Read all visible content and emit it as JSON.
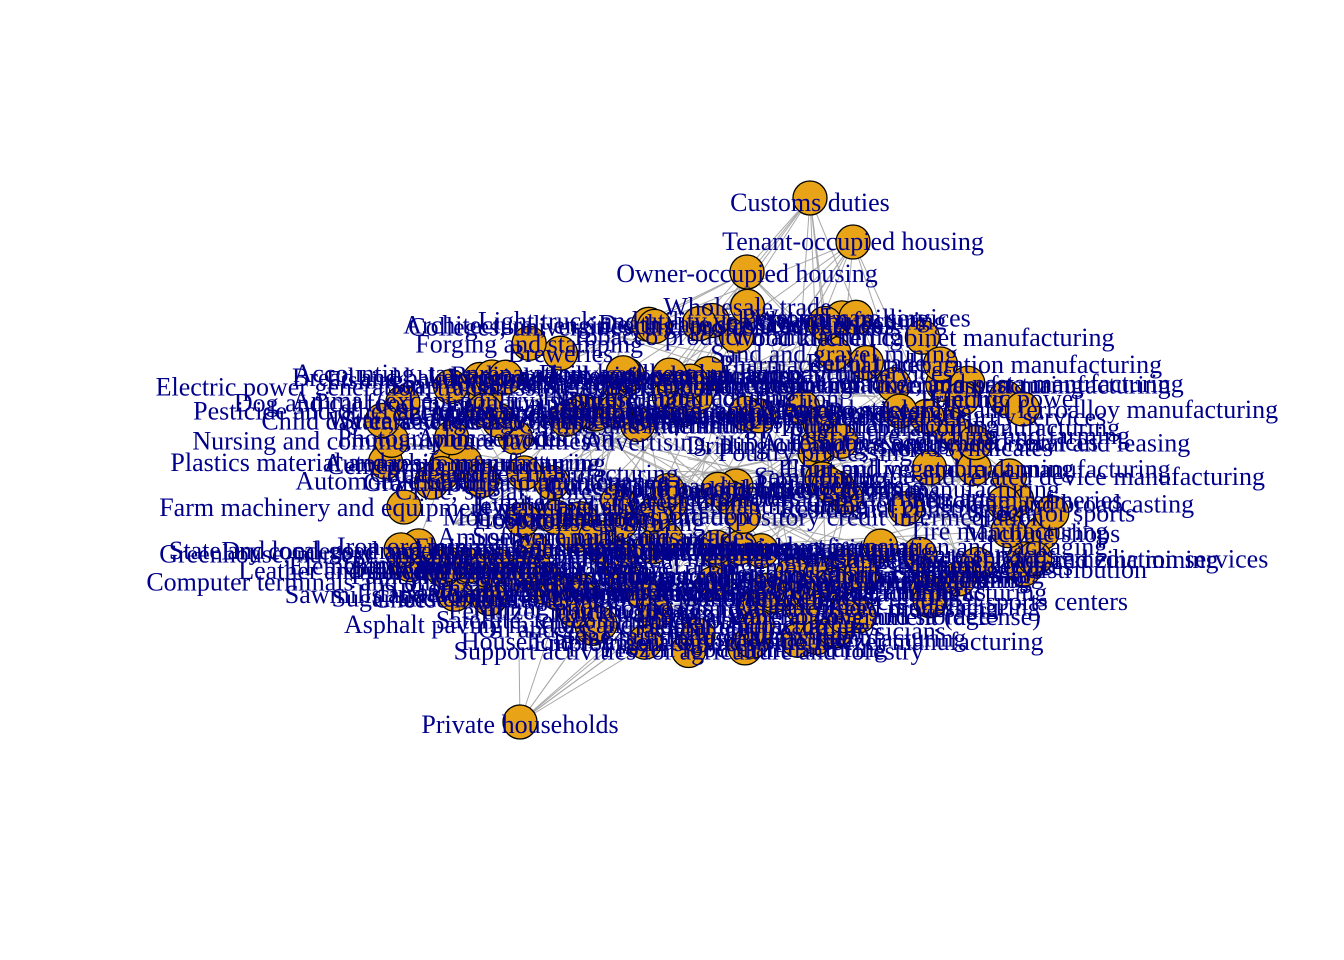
{
  "diagram": {
    "type": "network-graph",
    "colors": {
      "node_fill": "#e8a317",
      "node_stroke": "#000000",
      "edge": "#a8a8a8",
      "label": "#00008b",
      "background": "#ffffff"
    },
    "outlier_nodes": [
      {
        "id": "customs",
        "label": "Customs duties"
      },
      {
        "id": "tenant",
        "label": "Tenant-occupied housing"
      },
      {
        "id": "owner",
        "label": "Owner-occupied housing"
      },
      {
        "id": "households",
        "label": "Private households"
      }
    ],
    "cluster_labels": [
      "Beef cattle ranching and farming",
      "Animal production",
      "Animal (except poultry) slaughtering",
      "Support activities for agriculture and forestry",
      "Dry condensed and evaporated dairy product manufacturing",
      "Junior colleges",
      "Residential mental health",
      "Community food services",
      "State and local",
      "Promoters of performing arts",
      "Grantmaking",
      "Cutting and machining",
      "News syndicates",
      "Electric power",
      "Wood kitchen cabinet manufacturing",
      "Satellite, telecommunications",
      "Medical",
      "Motion picture",
      "Cotton farming",
      "Poultry processing",
      "Dairy cattle and milk production",
      "Ready-mix concrete manufacturing",
      "Grain farming",
      "Oilseed farming",
      "Fruit farming",
      "Greenhouse, nursery, and floriculture production",
      "Fishing, hunting and trapping",
      "Logging",
      "Oil and gas extraction",
      "Coal mining",
      "Iron ore mining",
      "Copper, nickel, lead, and zinc mining",
      "Stone mining and quarrying",
      "Sand and gravel mining",
      "Drilling oil and gas wells",
      "Electric power generation, transmission, and distribution",
      "Natural gas distribution",
      "Water, sewage and other systems",
      "Residential construction",
      "Nonresidential construction",
      "Dog and cat food manufacturing",
      "Flour milling and malt manufacturing",
      "Wet corn milling",
      "Soybean and other oilseed processing",
      "Sugar and confectionery product manufacturing",
      "Frozen food manufacturing",
      "Fruit and vegetable canning",
      "Fluid milk and butter manufacturing",
      "Cheese manufacturing",
      "Ice cream and frozen dessert manufacturing",
      "Meat processed from carcasses",
      "Seafood product preparation and packaging",
      "Bread and bakery product manufacturing",
      "Cookie, cracker, and pasta manufacturing",
      "Tortilla manufacturing",
      "Snack food manufacturing",
      "Coffee and tea manufacturing",
      "Soft drink and ice manufacturing",
      "Breweries",
      "Wineries",
      "Distilleries",
      "Tobacco product manufacturing",
      "Textile mills",
      "Apparel manufacturing",
      "Leather and allied product manufacturing",
      "Sawmills and wood preservation",
      "Pulp mills",
      "Paper mills",
      "Paperboard container manufacturing",
      "Printing",
      "Petroleum refineries",
      "Asphalt paving mixture and block manufacturing",
      "Petrochemical manufacturing",
      "Industrial gas manufacturing",
      "Synthetic dye and pigment manufacturing",
      "Plastics material and resin manufacturing",
      "Fertilizer manufacturing",
      "Pesticide and other agricultural chemical manufacturing",
      "Pharmaceutical preparation manufacturing",
      "Paint and coating manufacturing",
      "Soap and cleaning compound manufacturing",
      "Toilet preparation manufacturing",
      "Tire manufacturing",
      "Glass and glass product manufacturing",
      "Cement manufacturing",
      "Iron and steel mills and ferroalloy manufacturing",
      "Aluminum product manufacturing",
      "Forging and stamping",
      "Cutlery and handtool manufacturing",
      "Machine shops",
      "Farm machinery and equipment manufacturing",
      "Construction machinery manufacturing",
      "Mining and oil and gas field machinery manufacturing",
      "Semiconductor and related device manufacturing",
      "Computer terminals and other computer peripheral equipment manufacturing",
      "Household refrigerator and home freezer manufacturing",
      "Automobile manufacturing",
      "Light truck and utility vehicle manufacturing",
      "Aircraft manufacturing",
      "Railroad rolling stock manufacturing",
      "Ship building and repairing",
      "Furniture manufacturing",
      "Jewelry and silverware manufacturing",
      "Sporting and athletic goods manufacturing",
      "Wholesale trade",
      "Retail trade",
      "Air transportation",
      "Rail transportation",
      "Truck transportation",
      "Pipeline transportation",
      "Warehousing and storage",
      "Newspaper publishers",
      "Software publishers",
      "Radio and television broadcasting",
      "Cable and other subscription programming",
      "Internet publishing and broadcasting",
      "Data processing, hosting, and related services",
      "Monetary authorities and depository credit intermediation",
      "Securities and commodity contracts",
      "Insurance carriers",
      "Real estate",
      "Automotive equipment rental and leasing",
      "Legal services",
      "Accounting, tax preparation, bookkeeping, and payroll services",
      "Architectural, engineering, and related services",
      "Computer systems design services",
      "Management consulting services",
      "Scientific research and development services",
      "Advertising, public relations, and related services",
      "Photographic services",
      "Veterinary services",
      "Employment services",
      "Travel arrangement and reservation services",
      "Investigation and security services",
      "Waste management and remediation services",
      "Elementary and secondary schools",
      "Colleges, universities, and professional schools",
      "Offices of physicians",
      "Offices of dentists",
      "Home health care services",
      "Hospitals",
      "Nursing and community care facilities",
      "Child day care services",
      "Performing arts companies",
      "Spectator sports",
      "Museums, historical sites, zoos, and parks",
      "Amusement parks and arcades",
      "Gambling industries",
      "Fitness and recreational sports centers",
      "Accommodation",
      "Full-service restaurants",
      "Limited-service restaurants",
      "Automotive repair and maintenance",
      "Personal care services",
      "Death care services",
      "Dry-cleaning and laundry services",
      "Religious organizations",
      "Civic, social, professional, and similar organizations",
      "Postal service",
      "Federal electric utilities",
      "State and local government passenger transit",
      "Federal general government (defense)",
      "Federal general government (nondefense)",
      "State and local government (other services)"
    ]
  }
}
